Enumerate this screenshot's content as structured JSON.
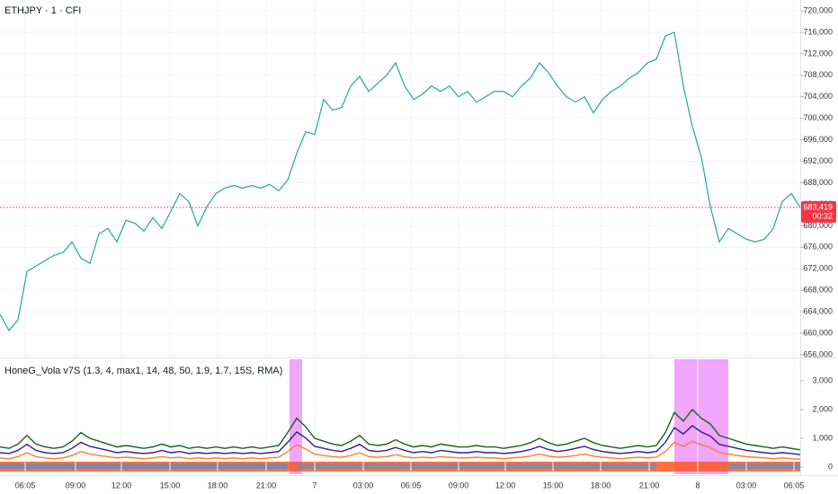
{
  "chart_data": [
    {
      "type": "line",
      "title": "ETHJPY · 1 · CFI",
      "xlim": [
        0,
        89
      ],
      "xticks": [
        {
          "value": 2.8,
          "label": "06:05"
        },
        {
          "value": 8.4,
          "label": "09:00"
        },
        {
          "value": 13.5,
          "label": "12:00"
        },
        {
          "value": 18.9,
          "label": "15:00"
        },
        {
          "value": 24.2,
          "label": "18:00"
        },
        {
          "value": 29.6,
          "label": "21:00"
        },
        {
          "value": 35,
          "label": "7"
        },
        {
          "value": 40.4,
          "label": "03:00"
        },
        {
          "value": 45.7,
          "label": "06:05"
        },
        {
          "value": 51,
          "label": "09:00"
        },
        {
          "value": 56.2,
          "label": "12:00"
        },
        {
          "value": 61.5,
          "label": "15:00"
        },
        {
          "value": 66.8,
          "label": "18:00"
        },
        {
          "value": 72.2,
          "label": "21:00"
        },
        {
          "value": 77.6,
          "label": "8"
        },
        {
          "value": 83,
          "label": "03:00"
        },
        {
          "value": 88.3,
          "label": "06:05"
        }
      ],
      "ylim": [
        656000,
        720000
      ],
      "yticks": [
        {
          "value": 656000,
          "label": "656,000"
        },
        {
          "value": 660000,
          "label": "660,000"
        },
        {
          "value": 664000,
          "label": "664,000"
        },
        {
          "value": 668000,
          "label": "668,000"
        },
        {
          "value": 672000,
          "label": "672,000"
        },
        {
          "value": 676000,
          "label": "676,000"
        },
        {
          "value": 680000,
          "label": "680,000"
        },
        {
          "value": 684000,
          "label": "684,000"
        },
        {
          "value": 688000,
          "label": "688,000"
        },
        {
          "value": 692000,
          "label": "692,000"
        },
        {
          "value": 696000,
          "label": "696,000"
        },
        {
          "value": 700000,
          "label": "700,000"
        },
        {
          "value": 704000,
          "label": "704,000"
        },
        {
          "value": 708000,
          "label": "708,000"
        },
        {
          "value": 712000,
          "label": "712,000"
        },
        {
          "value": 716000,
          "label": "716,000"
        },
        {
          "value": 720000,
          "label": "720,000"
        }
      ],
      "grid": true,
      "color": "#26a69a",
      "values": [
        663500,
        660500,
        662500,
        671500,
        672500,
        673500,
        674500,
        675000,
        677000,
        674000,
        673000,
        678500,
        679500,
        677000,
        681000,
        680500,
        679000,
        681500,
        679500,
        682700,
        686000,
        684500,
        680000,
        683500,
        686000,
        687000,
        687500,
        687000,
        687500,
        687000,
        687700,
        686500,
        688500,
        693500,
        697500,
        697000,
        703500,
        701500,
        702000,
        706000,
        707800,
        705000,
        706500,
        708000,
        710300,
        706000,
        703500,
        704500,
        706000,
        705000,
        706000,
        704000,
        705000,
        703000,
        704000,
        705000,
        705000,
        704000,
        706000,
        707500,
        710300,
        708500,
        706000,
        704000,
        703000,
        704000,
        701000,
        703500,
        705000,
        706000,
        707500,
        708500,
        710300,
        711000,
        715300,
        716000,
        706000,
        698500,
        692800,
        683600,
        677000,
        679500,
        678500,
        677500,
        677000,
        677500,
        679500,
        684500,
        686000,
        683419
      ],
      "last_price": {
        "value": 683419,
        "label": "683,419",
        "color": "#f23645"
      },
      "countdown": "00:32"
    },
    {
      "type": "line",
      "title": "HoneG_Vola v7S (1.3, 4, max1, 14, 48, 50, 1.9, 1.7, 15S, RMA)",
      "xlim": [
        0,
        89
      ],
      "ylim": [
        -250,
        3750
      ],
      "yticks": [
        0,
        {
          "value": 1000,
          "label": "1,000"
        },
        {
          "value": 2000,
          "label": "2,000"
        },
        {
          "value": 3000,
          "label": "3,000"
        }
      ],
      "highlight_ranges": [
        [
          32.2,
          33.6
        ],
        [
          75,
          81
        ]
      ],
      "highlight_color": "#ea80fc",
      "series": [
        {
          "color": "#1b5e20",
          "values": [
            700,
            650,
            800,
            1100,
            800,
            700,
            650,
            700,
            900,
            1200,
            1000,
            900,
            800,
            700,
            750,
            700,
            650,
            700,
            800,
            700,
            750,
            650,
            700,
            650,
            700,
            650,
            700,
            650,
            700,
            650,
            700,
            750,
            1200,
            1700,
            1400,
            1000,
            900,
            800,
            750,
            900,
            1100,
            800,
            750,
            800,
            950,
            800,
            700,
            750,
            700,
            800,
            750,
            700,
            700,
            750,
            700,
            700,
            650,
            700,
            750,
            850,
            1000,
            850,
            750,
            800,
            900,
            1000,
            850,
            750,
            700,
            650,
            700,
            750,
            700,
            750,
            1200,
            1900,
            1600,
            2000,
            1700,
            1500,
            1100,
            1000,
            900,
            800,
            750,
            700,
            650,
            700,
            650,
            600
          ]
        },
        {
          "color": "#311b92",
          "values": [
            500,
            470,
            580,
            790,
            580,
            500,
            470,
            500,
            650,
            860,
            720,
            650,
            580,
            500,
            540,
            500,
            470,
            500,
            580,
            500,
            540,
            470,
            500,
            470,
            500,
            470,
            500,
            470,
            500,
            470,
            500,
            540,
            860,
            1220,
            1010,
            720,
            650,
            580,
            540,
            650,
            790,
            580,
            540,
            580,
            680,
            580,
            500,
            540,
            500,
            580,
            540,
            500,
            500,
            540,
            500,
            500,
            470,
            500,
            540,
            610,
            720,
            610,
            540,
            580,
            650,
            720,
            610,
            540,
            500,
            470,
            500,
            540,
            500,
            540,
            860,
            1370,
            1150,
            1440,
            1220,
            1080,
            790,
            720,
            650,
            580,
            540,
            500,
            470,
            500,
            470,
            430
          ]
        },
        {
          "color": "#ff7f27",
          "values": [
            320,
            290,
            360,
            500,
            360,
            320,
            290,
            320,
            400,
            540,
            450,
            400,
            360,
            320,
            340,
            320,
            290,
            320,
            360,
            320,
            340,
            290,
            320,
            290,
            320,
            290,
            320,
            290,
            320,
            290,
            320,
            340,
            540,
            770,
            630,
            450,
            400,
            360,
            340,
            400,
            500,
            360,
            340,
            360,
            430,
            360,
            320,
            340,
            320,
            360,
            340,
            320,
            320,
            340,
            320,
            320,
            290,
            320,
            340,
            380,
            450,
            380,
            340,
            360,
            400,
            450,
            380,
            340,
            320,
            290,
            320,
            340,
            320,
            340,
            540,
            860,
            720,
            900,
            770,
            680,
            500,
            450,
            400,
            360,
            340,
            320,
            290,
            320,
            290,
            270
          ]
        }
      ]
    }
  ]
}
